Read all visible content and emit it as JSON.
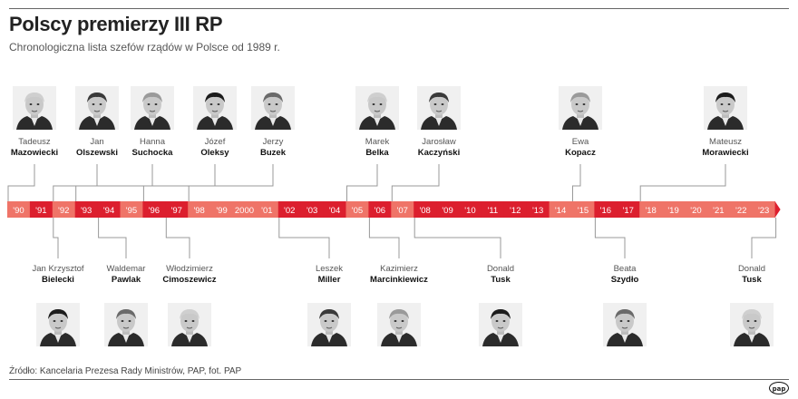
{
  "title": "Polscy premierzy III RP",
  "subtitle": "Chronologiczna lista szefów rządów w Polsce od 1989 r.",
  "source": "Źródło: Kancelaria Prezesa Rady Ministrów, PAP, fot. PAP",
  "logo": "pap",
  "colors": {
    "dark_red": "#dc1f2e",
    "light_red": "#ef7468"
  },
  "timeline": {
    "years": [
      {
        "label": "'90",
        "dark": false
      },
      {
        "label": "'91",
        "dark": true
      },
      {
        "label": "'92",
        "dark": false
      },
      {
        "label": "'93",
        "dark": true
      },
      {
        "label": "'94",
        "dark": true
      },
      {
        "label": "'95",
        "dark": false
      },
      {
        "label": "'96",
        "dark": true
      },
      {
        "label": "'97",
        "dark": true
      },
      {
        "label": "'98",
        "dark": false
      },
      {
        "label": "'99",
        "dark": false
      },
      {
        "label": "2000",
        "dark": false
      },
      {
        "label": "'01",
        "dark": false
      },
      {
        "label": "'02",
        "dark": true
      },
      {
        "label": "'03",
        "dark": true
      },
      {
        "label": "'04",
        "dark": true
      },
      {
        "label": "'05",
        "dark": false
      },
      {
        "label": "'06",
        "dark": true
      },
      {
        "label": "'07",
        "dark": false
      },
      {
        "label": "'08",
        "dark": true
      },
      {
        "label": "'09",
        "dark": true
      },
      {
        "label": "'10",
        "dark": true
      },
      {
        "label": "'11",
        "dark": true
      },
      {
        "label": "'12",
        "dark": true
      },
      {
        "label": "'13",
        "dark": true
      },
      {
        "label": "'14",
        "dark": false
      },
      {
        "label": "'15",
        "dark": false
      },
      {
        "label": "'16",
        "dark": true
      },
      {
        "label": "'17",
        "dark": true
      },
      {
        "label": "'18",
        "dark": false
      },
      {
        "label": "'19",
        "dark": false
      },
      {
        "label": "'20",
        "dark": false
      },
      {
        "label": "'21",
        "dark": false
      },
      {
        "label": "'22",
        "dark": false
      },
      {
        "label": "'23",
        "dark": false
      }
    ]
  },
  "premiers_top": [
    {
      "first": "Tadeusz",
      "last": "Mazowiecki",
      "start_year": 1989
    },
    {
      "first": "Jan",
      "last": "Olszewski",
      "start_year": 1991
    },
    {
      "first": "Hanna",
      "last": "Suchocka",
      "start_year": 1992
    },
    {
      "first": "Józef",
      "last": "Oleksy",
      "start_year": 1995
    },
    {
      "first": "Jerzy",
      "last": "Buzek",
      "start_year": 1997
    },
    {
      "first": "Marek",
      "last": "Belka",
      "start_year": 2004
    },
    {
      "first": "Jarosław",
      "last": "Kaczyński",
      "start_year": 2006
    },
    {
      "first": "Ewa",
      "last": "Kopacz",
      "start_year": 2014
    },
    {
      "first": "Mateusz",
      "last": "Morawiecki",
      "start_year": 2017
    }
  ],
  "premiers_bottom": [
    {
      "first": "Jan Krzysztof",
      "last": "Bielecki",
      "start_year": 1991
    },
    {
      "first": "Waldemar",
      "last": "Pawlak",
      "start_year": 1993
    },
    {
      "first": "Włodzimierz",
      "last": "Cimoszewicz",
      "start_year": 1996
    },
    {
      "first": "Leszek",
      "last": "Miller",
      "start_year": 2001
    },
    {
      "first": "Kazimierz",
      "last": "Marcinkiewicz",
      "start_year": 2005
    },
    {
      "first": "Donald",
      "last": "Tusk",
      "start_year": 2007
    },
    {
      "first": "Beata",
      "last": "Szydło",
      "start_year": 2015
    },
    {
      "first": "Donald",
      "last": "Tusk",
      "start_year": 2023
    }
  ]
}
